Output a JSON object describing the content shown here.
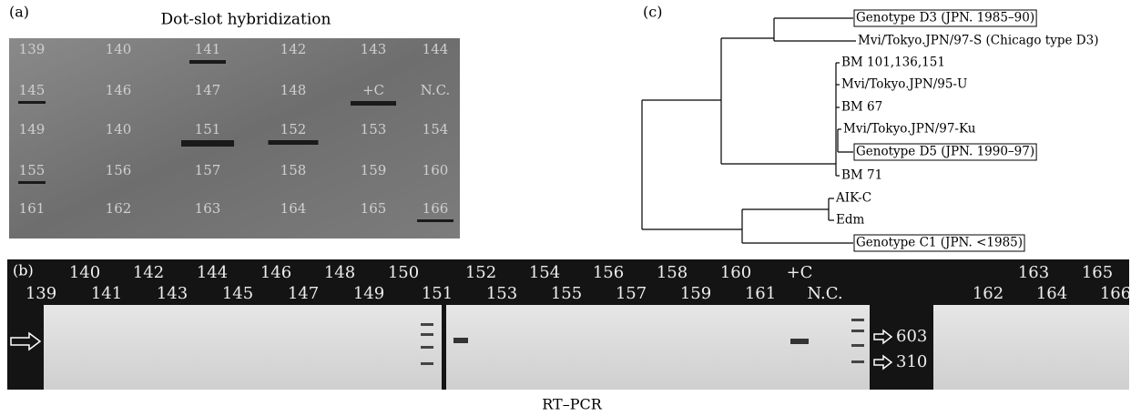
{
  "panel_a": {
    "label": "(a)",
    "title": "Dot-slot hybridization",
    "rows": [
      [
        "139",
        "140",
        "141",
        "142",
        "143",
        "144"
      ],
      [
        "145",
        "146",
        "147",
        "148",
        "+C",
        "N.C."
      ],
      [
        "149",
        "140",
        "151",
        "152",
        "153",
        "154"
      ],
      [
        "155",
        "156",
        "157",
        "158",
        "159",
        "160"
      ],
      [
        "161",
        "162",
        "163",
        "164",
        "165",
        "166"
      ]
    ]
  },
  "panel_b": {
    "label": "(b)",
    "top_row": [
      [
        "140",
        "142",
        "144",
        "146",
        "148",
        "150"
      ],
      [
        "152",
        "154",
        "156",
        "158",
        "160",
        "+C"
      ],
      [
        "163",
        "165"
      ]
    ],
    "bottom_row": [
      [
        "139",
        "141",
        "143",
        "145",
        "147",
        "149"
      ],
      [
        "151",
        "153",
        "155",
        "157",
        "159",
        "161",
        "N.C."
      ],
      [
        "162",
        "164",
        "166"
      ]
    ],
    "markers": [
      "603",
      "310"
    ],
    "caption": "RT–PCR"
  },
  "panel_c": {
    "label": "(c)",
    "leaves": [
      "Genotype D3 (JPN. 1985–90)",
      "Mvi/Tokyo.JPN/97-S (Chicago type D3)",
      "BM 101,136,151",
      "Mvi/Tokyo.JPN/95-U",
      "BM 67",
      "Mvi/Tokyo.JPN/97-Ku",
      "Genotype D5 (JPN. 1990–97)",
      "BM 71",
      "AIK-C",
      "Edm",
      "Genotype C1 (JPN. <1985)"
    ]
  }
}
